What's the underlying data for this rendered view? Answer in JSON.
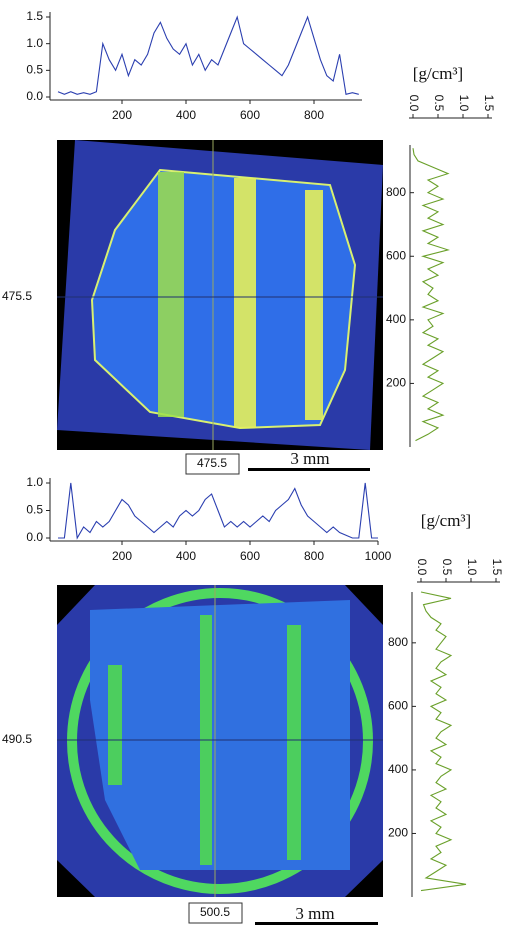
{
  "chart_data": [
    {
      "type": "line",
      "orientation": "horizontal",
      "color": "#2b3fb0",
      "x": [
        0,
        20,
        40,
        60,
        80,
        100,
        120,
        140,
        160,
        180,
        200,
        220,
        240,
        260,
        280,
        300,
        320,
        340,
        360,
        380,
        400,
        420,
        440,
        460,
        480,
        500,
        520,
        540,
        560,
        580,
        600,
        620,
        640,
        660,
        680,
        700,
        720,
        740,
        760,
        780,
        800,
        820,
        840,
        860,
        880,
        900,
        920,
        940
      ],
      "values": [
        0.1,
        0.05,
        0.1,
        0.05,
        0.08,
        0.05,
        0.1,
        1.0,
        0.7,
        0.5,
        0.8,
        0.4,
        0.7,
        0.6,
        0.8,
        1.2,
        1.4,
        1.1,
        0.9,
        0.8,
        1.0,
        0.6,
        0.8,
        0.5,
        0.7,
        0.6,
        0.9,
        1.2,
        1.5,
        1.0,
        0.9,
        0.8,
        0.7,
        0.6,
        0.5,
        0.4,
        0.6,
        0.9,
        1.2,
        1.5,
        1.1,
        0.7,
        0.4,
        0.3,
        0.8,
        0.05,
        0.08,
        0.05
      ],
      "xlim": [
        -25,
        950
      ],
      "xticks": [
        200,
        400,
        600,
        800
      ],
      "ylim": [
        0,
        1.5
      ],
      "yticks": [
        {
          "value": 0,
          "label": "0.0"
        },
        {
          "value": 0.5,
          "label": "0.5"
        },
        {
          "value": 1,
          "label": "1.0"
        },
        {
          "value": 1.5,
          "label": "1.5"
        }
      ]
    },
    {
      "type": "line",
      "orientation": "vertical",
      "color": "#6aa02a",
      "x_label": "[g/cm³]",
      "y": [
        20,
        40,
        60,
        80,
        100,
        120,
        140,
        160,
        180,
        200,
        220,
        240,
        260,
        280,
        300,
        320,
        340,
        360,
        380,
        400,
        420,
        440,
        460,
        480,
        500,
        520,
        540,
        560,
        580,
        600,
        620,
        640,
        660,
        680,
        700,
        720,
        740,
        760,
        780,
        800,
        820,
        840,
        860,
        880,
        900,
        920,
        940
      ],
      "values": [
        0.05,
        0.3,
        0.5,
        0.2,
        0.6,
        0.3,
        0.5,
        0.2,
        0.4,
        0.6,
        0.3,
        0.5,
        0.2,
        0.4,
        0.6,
        0.3,
        0.5,
        0.2,
        0.4,
        0.3,
        0.6,
        0.2,
        0.5,
        0.3,
        0.4,
        0.2,
        0.5,
        0.3,
        0.6,
        0.2,
        0.7,
        0.3,
        0.5,
        0.2,
        0.6,
        0.3,
        0.5,
        0.2,
        0.6,
        0.3,
        0.5,
        0.3,
        0.7,
        0.4,
        0.1,
        0.02,
        0.0
      ],
      "xlim": [
        0,
        1.5
      ],
      "xticks": [
        {
          "value": 0,
          "label": "0.0"
        },
        {
          "value": 0.5,
          "label": "0.5"
        },
        {
          "value": 1,
          "label": "1.0"
        },
        {
          "value": 1.5,
          "label": "1.5"
        }
      ],
      "ylim": [
        0,
        950
      ],
      "yticks": [
        200,
        400,
        600,
        800
      ]
    },
    {
      "type": "line",
      "orientation": "horizontal",
      "color": "#2b3fb0",
      "x": [
        0,
        20,
        40,
        60,
        80,
        100,
        120,
        140,
        160,
        180,
        200,
        220,
        240,
        260,
        280,
        300,
        320,
        340,
        360,
        380,
        400,
        420,
        440,
        460,
        480,
        500,
        520,
        540,
        560,
        580,
        600,
        620,
        640,
        660,
        680,
        700,
        720,
        740,
        760,
        780,
        800,
        820,
        840,
        860,
        880,
        900,
        920,
        940,
        960,
        980,
        1000
      ],
      "values": [
        0,
        0,
        1.0,
        0,
        0.2,
        0.1,
        0.3,
        0.2,
        0.3,
        0.5,
        0.7,
        0.6,
        0.4,
        0.3,
        0.2,
        0.1,
        0.2,
        0.3,
        0.2,
        0.4,
        0.5,
        0.4,
        0.5,
        0.7,
        0.8,
        0.5,
        0.2,
        0.3,
        0.2,
        0.3,
        0.2,
        0.3,
        0.4,
        0.3,
        0.5,
        0.6,
        0.7,
        0.9,
        0.6,
        0.4,
        0.3,
        0.2,
        0.1,
        0.2,
        0.1,
        0.05,
        0,
        0,
        1.0,
        0,
        0
      ],
      "xlim": [
        -25,
        1000
      ],
      "xticks": [
        200,
        400,
        600,
        800,
        1000
      ],
      "ylim": [
        0,
        1
      ],
      "yticks": [
        {
          "value": 0,
          "label": "0.0"
        },
        {
          "value": 0.5,
          "label": "0.5"
        },
        {
          "value": 1,
          "label": "1.0"
        }
      ]
    },
    {
      "type": "line",
      "orientation": "vertical",
      "color": "#6aa02a",
      "x_label": "[g/cm³]",
      "y": [
        20,
        40,
        60,
        80,
        100,
        120,
        140,
        160,
        180,
        200,
        220,
        240,
        260,
        280,
        300,
        320,
        340,
        360,
        380,
        400,
        420,
        440,
        460,
        480,
        500,
        520,
        540,
        560,
        580,
        600,
        620,
        640,
        660,
        680,
        700,
        720,
        740,
        760,
        780,
        800,
        820,
        840,
        860,
        880,
        900,
        920,
        940,
        960
      ],
      "values": [
        0,
        0.9,
        0.1,
        0.3,
        0.5,
        0.2,
        0.4,
        0.3,
        0.6,
        0.3,
        0.4,
        0.2,
        0.5,
        0.3,
        0.4,
        0.2,
        0.5,
        0.3,
        0.4,
        0.6,
        0.3,
        0.4,
        0.2,
        0.5,
        0.3,
        0.4,
        0.6,
        0.3,
        0.4,
        0.2,
        0.5,
        0.3,
        0.4,
        0.2,
        0.5,
        0.3,
        0.4,
        0.6,
        0.3,
        0.4,
        0.5,
        0.3,
        0.4,
        0.2,
        0.1,
        0.05,
        0.6,
        0
      ],
      "xlim": [
        0,
        1.5
      ],
      "xticks": [
        {
          "value": 0,
          "label": "0.0"
        },
        {
          "value": 0.5,
          "label": "0.5"
        },
        {
          "value": 1,
          "label": "1.0"
        },
        {
          "value": 1.5,
          "label": "1.5"
        }
      ],
      "ylim": [
        0,
        960
      ],
      "yticks": [
        200,
        400,
        600,
        800
      ]
    }
  ],
  "figure": {
    "panels": [
      {
        "row_label": "475.5",
        "column_label": "475.5",
        "scale_bar": "3 mm"
      },
      {
        "row_label": "490.5",
        "column_label": "500.5",
        "scale_bar": "3 mm"
      }
    ]
  }
}
